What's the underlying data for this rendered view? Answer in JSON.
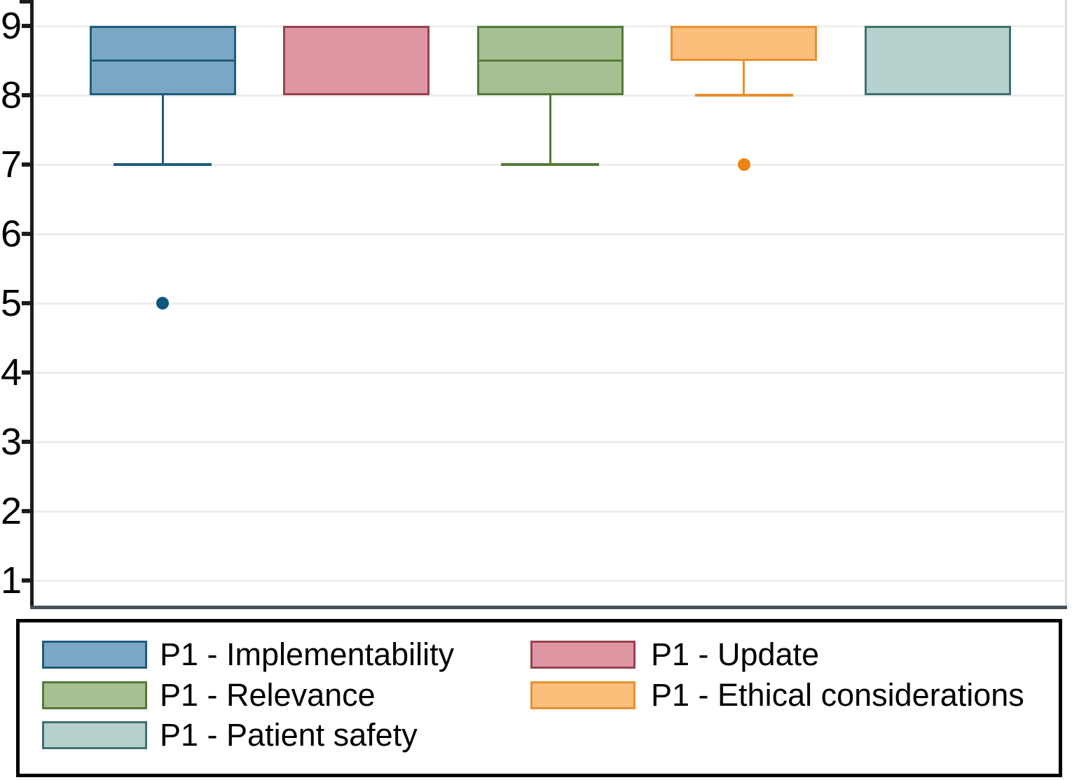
{
  "chart_data": {
    "type": "boxplot",
    "title": "",
    "xlabel": "",
    "ylabel": "",
    "yticks": [
      1,
      2,
      3,
      4,
      5,
      6,
      7,
      8,
      9
    ],
    "ylim": [
      0.6,
      9.4
    ],
    "grid": "horizontal",
    "legend_position": "bottom",
    "series": [
      {
        "name": "P1 - Implementability",
        "fill": "#7BA7C4",
        "stroke": "#1F5B7D",
        "outlier_color": "#0E567E",
        "q1": 8,
        "q3": 9,
        "median": 8.5,
        "whisker_low": 7,
        "whisker_high": null,
        "outliers": [
          5
        ]
      },
      {
        "name": "P1 - Update",
        "fill": "#DE97A2",
        "stroke": "#96434F",
        "outlier_color": "#96434F",
        "q1": 8,
        "q3": 9,
        "median": null,
        "whisker_low": null,
        "whisker_high": null,
        "outliers": []
      },
      {
        "name": "P1 - Relevance",
        "fill": "#A6C091",
        "stroke": "#55793A",
        "outlier_color": "#55793A",
        "q1": 8,
        "q3": 9,
        "median": 8.5,
        "whisker_low": 7,
        "whisker_high": null,
        "outliers": []
      },
      {
        "name": "P1 - Ethical considerations",
        "fill": "#FBBE7B",
        "stroke": "#E8912F",
        "outlier_color": "#EE8512",
        "q1": 8.5,
        "q3": 9,
        "median": null,
        "whisker_low": 8,
        "whisker_high": null,
        "outliers": [
          7
        ]
      },
      {
        "name": "P1 - Patient safety",
        "fill": "#B5D2CE",
        "stroke": "#41706D",
        "outlier_color": "#41706D",
        "q1": 8,
        "q3": 9,
        "median": null,
        "whisker_low": null,
        "whisker_high": null,
        "outliers": []
      }
    ],
    "legend": {
      "columns": [
        [
          "P1 - Implementability",
          "P1 - Relevance",
          "P1 - Patient safety"
        ],
        [
          "P1 - Update",
          "P1 - Ethical considerations"
        ]
      ]
    }
  },
  "colors": {
    "background": "#FFFFFF",
    "gridline": "#EDEDED",
    "y_axis": "#1C1C1C",
    "x_axis": "#47525B",
    "plot_right_border": "#D9DEE1",
    "legend_border": "#000000",
    "text": "#000000"
  }
}
